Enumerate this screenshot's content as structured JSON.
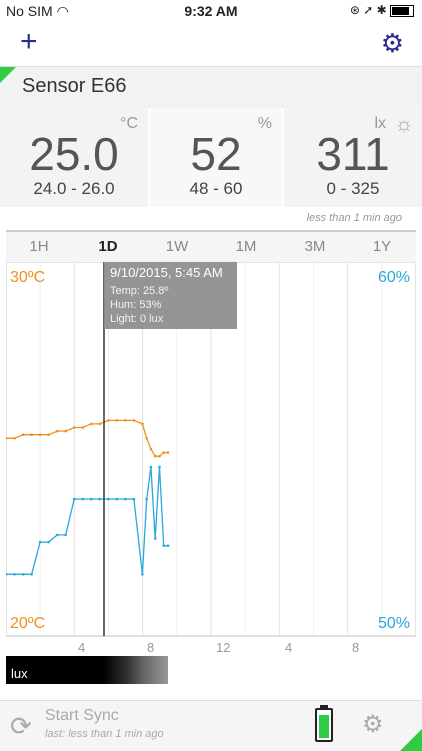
{
  "status_bar": {
    "carrier": "No SIM",
    "wifi_icon": "wifi-icon",
    "time": "9:32 AM",
    "icons": "⊛ ➚ ✱",
    "battery_icon": "battery-icon"
  },
  "nav": {
    "add_icon": "plus-icon",
    "settings_icon": "gear-icon"
  },
  "sensor": {
    "name": "Sensor E66"
  },
  "readings": [
    {
      "unit": "°C",
      "value": "25.0",
      "range": "24.0 - 26.0"
    },
    {
      "unit": "%",
      "value": "52",
      "range": "48  -  60"
    },
    {
      "unit": "lx",
      "value": "311",
      "range": "0 - 325",
      "icon": "sun-icon"
    }
  ],
  "updated": "less than 1 min ago",
  "tabs": [
    {
      "label": "1H",
      "active": false
    },
    {
      "label": "1D",
      "active": true
    },
    {
      "label": "1W",
      "active": false
    },
    {
      "label": "1M",
      "active": false
    },
    {
      "label": "3M",
      "active": false
    },
    {
      "label": "1Y",
      "active": false
    }
  ],
  "chart": {
    "left_top_label": "30ºC",
    "left_bottom_label": "20ºC",
    "right_top_label": "60%",
    "right_bottom_label": "50%",
    "tooltip": {
      "title": "9/10/2015, 5:45 AM",
      "temp": "Temp: 25.8º",
      "hum": "Hum: 53%",
      "light": "Light: 0 lux"
    },
    "x_ticks": [
      "4",
      "8",
      "12",
      "4",
      "8"
    ],
    "lux_label": "lux",
    "colors": {
      "temp": "#f0901e",
      "hum": "#2aa8d8"
    }
  },
  "chart_data": {
    "type": "line",
    "title": "",
    "xlabel": "",
    "ylabel": "",
    "x": [
      0,
      0.5,
      1,
      1.5,
      2,
      2.5,
      3,
      3.5,
      4,
      4.5,
      5,
      5.5,
      6,
      6.5,
      7,
      7.5,
      8,
      8.25,
      8.5,
      8.75,
      9,
      9.25,
      9.5
    ],
    "series": [
      {
        "axis": "left",
        "ylim": [
          20,
          30
        ],
        "values": [
          25.3,
          25.3,
          25.4,
          25.4,
          25.4,
          25.4,
          25.5,
          25.5,
          25.6,
          25.6,
          25.7,
          25.7,
          25.8,
          25.8,
          25.8,
          25.8,
          25.7,
          25.3,
          25.0,
          24.8,
          24.8,
          24.9,
          24.9
        ]
      },
      {
        "axis": "right",
        "ylim": [
          50,
          60
        ],
        "values": [
          51.5,
          51.5,
          51.5,
          51.5,
          52.4,
          52.4,
          52.6,
          52.6,
          53.6,
          53.6,
          53.6,
          53.6,
          53.6,
          53.6,
          53.6,
          53.6,
          51.5,
          53.6,
          54.5,
          52.5,
          54.5,
          52.3,
          52.3
        ]
      }
    ]
  },
  "footer": {
    "sync_label": "Start Sync",
    "last_label": "last: less than 1 min ago",
    "sync_icon": "refresh-icon",
    "battery_icon": "battery-icon",
    "settings_icon": "gear-icon"
  }
}
